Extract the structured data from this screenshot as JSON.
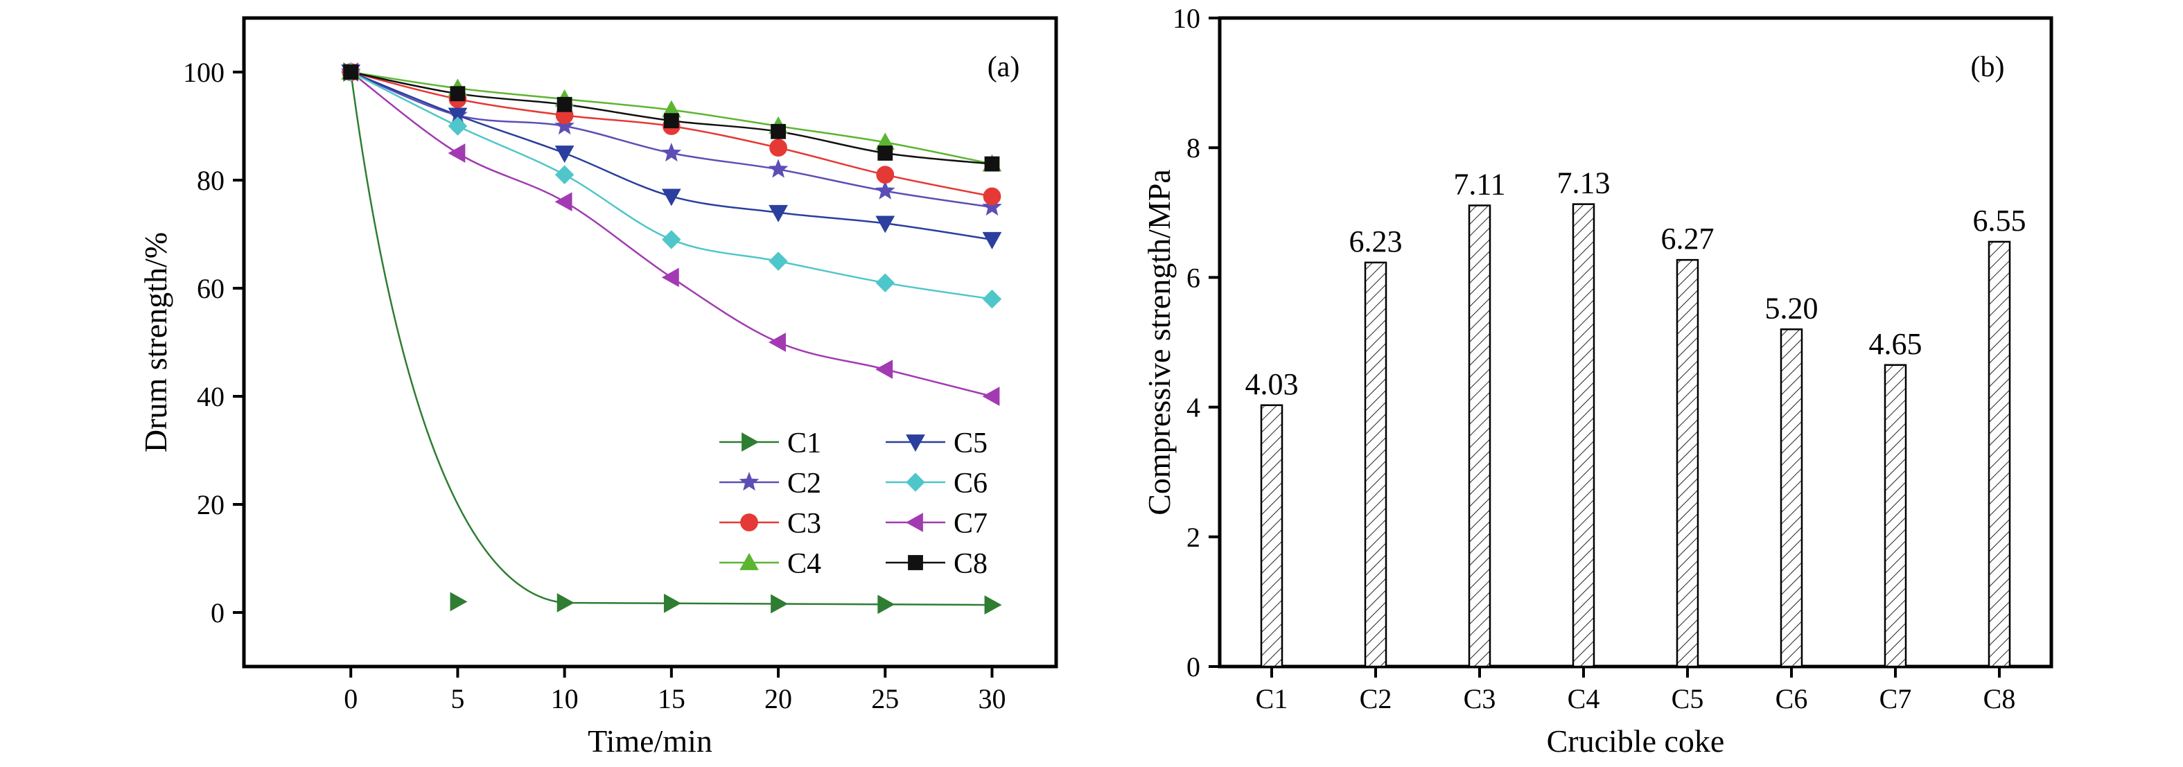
{
  "chart_data": [
    {
      "type": "line",
      "panel_label": "(a)",
      "xlabel": "Time/min",
      "ylabel": "Drum strength/%",
      "xlim": [
        -5,
        33
      ],
      "ylim": [
        -10,
        110
      ],
      "xticks": [
        0,
        5,
        10,
        15,
        20,
        25,
        30
      ],
      "yticks": [
        0,
        20,
        40,
        60,
        80,
        100
      ],
      "grid": false,
      "legend_placement": "bottom-right",
      "x": [
        0,
        5,
        10,
        15,
        20,
        25,
        30
      ],
      "series": [
        {
          "name": "C1",
          "values": [
            100,
            2,
            1.8,
            1.7,
            1.6,
            1.5,
            1.4
          ],
          "color": "#2e7d32",
          "marker": "triangle-right"
        },
        {
          "name": "C2",
          "values": [
            100,
            92,
            90,
            85,
            82,
            78,
            75
          ],
          "color": "#5b4fb5",
          "marker": "star"
        },
        {
          "name": "C3",
          "values": [
            100,
            95,
            92,
            90,
            86,
            81,
            77
          ],
          "color": "#e53935",
          "marker": "circle"
        },
        {
          "name": "C4",
          "values": [
            100,
            97,
            95,
            93,
            90,
            87,
            83
          ],
          "color": "#5cb531",
          "marker": "triangle-up"
        },
        {
          "name": "C5",
          "values": [
            100,
            92,
            85,
            77,
            74,
            72,
            69
          ],
          "color": "#2a3f9e",
          "marker": "triangle-down"
        },
        {
          "name": "C6",
          "values": [
            100,
            90,
            81,
            69,
            65,
            61,
            58
          ],
          "color": "#4fc6c9",
          "marker": "diamond"
        },
        {
          "name": "C7",
          "values": [
            100,
            85,
            76,
            62,
            50,
            45,
            40
          ],
          "color": "#a23ab2",
          "marker": "triangle-left"
        },
        {
          "name": "C8",
          "values": [
            100,
            96,
            94,
            91,
            89,
            85,
            83
          ],
          "color": "#111111",
          "marker": "square"
        }
      ]
    },
    {
      "type": "bar",
      "panel_label": "(b)",
      "xlabel": "Crucible coke",
      "ylabel": "Compressive strength/MPa",
      "ylim": [
        0,
        10
      ],
      "yticks": [
        0,
        2,
        4,
        6,
        8,
        10
      ],
      "grid": false,
      "categories": [
        "C1",
        "C2",
        "C3",
        "C4",
        "C5",
        "C6",
        "C7",
        "C8"
      ],
      "values": [
        4.03,
        6.23,
        7.11,
        7.13,
        6.27,
        5.2,
        4.65,
        6.55
      ],
      "value_labels": [
        "4.03",
        "6.23",
        "7.11",
        "7.13",
        "6.27",
        "5.20",
        "4.65",
        "6.55"
      ],
      "bar_fill": "diagonal-hatch"
    }
  ]
}
